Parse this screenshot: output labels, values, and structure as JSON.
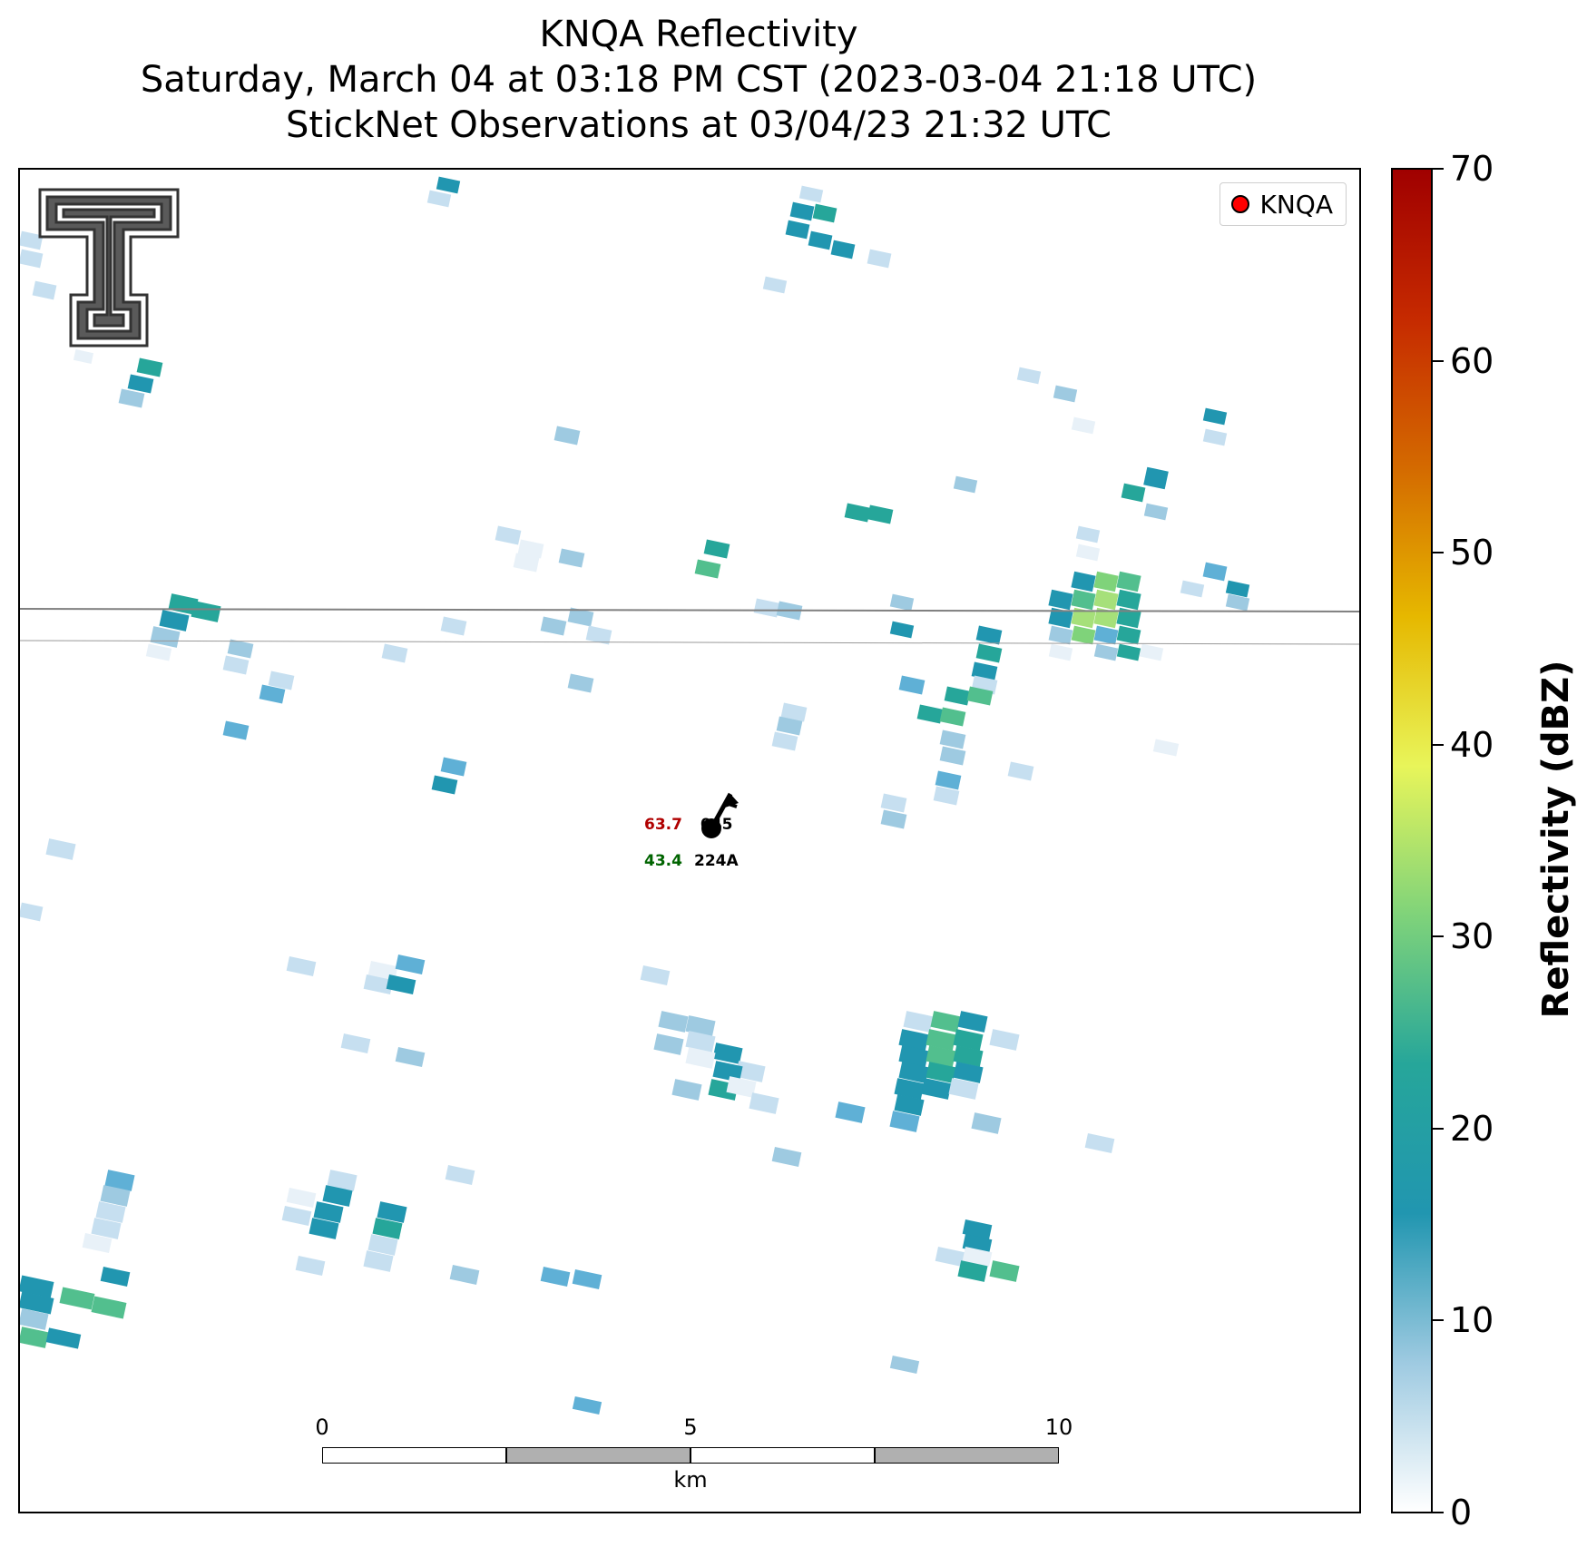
{
  "title": {
    "line1": "KNQA Reflectivity",
    "line2": "Saturday, March 04 at 03:18 PM CST (2023-03-04 21:18 UTC)",
    "line3": "StickNet Observations at 03/04/23 21:32 UTC"
  },
  "legend": {
    "label": "KNQA",
    "marker_color": "#ff0000"
  },
  "logo": {
    "name": "Texas Tech Double T"
  },
  "station": {
    "temperature": "63.7",
    "temperature_color": "#b00000",
    "dewpoint": "43.4",
    "dewpoint_color": "#006400",
    "pressure": "045",
    "id": "224A"
  },
  "scalebar": {
    "ticks": [
      "0",
      "5",
      "10"
    ],
    "unit": "km"
  },
  "colorbar": {
    "title": "Reflectivity (dBZ)",
    "min": 0,
    "max": 70,
    "ticks": [
      "0",
      "10",
      "20",
      "30",
      "40",
      "50",
      "60",
      "70"
    ],
    "colors": [
      "#ffffff",
      "#9ecae1",
      "#2196b0",
      "#26a69a",
      "#7fd37a",
      "#e8f55a",
      "#e6b800",
      "#d46a00",
      "#c62a00",
      "#a00000"
    ]
  }
}
